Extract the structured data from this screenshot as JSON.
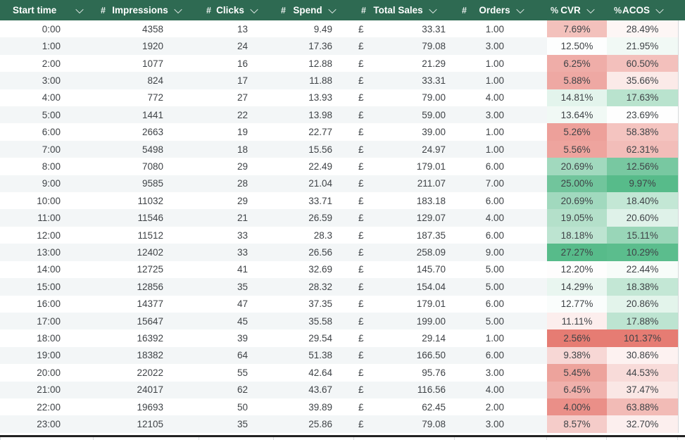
{
  "table": {
    "currency_symbol": "£",
    "columns": [
      {
        "key": "start_time",
        "label": "Start time",
        "format": ""
      },
      {
        "key": "impressions",
        "label": "Impressions",
        "format": "#"
      },
      {
        "key": "clicks",
        "label": "Clicks",
        "format": "#"
      },
      {
        "key": "spend",
        "label": "Spend",
        "format": "#"
      },
      {
        "key": "total_sales",
        "label": "Total Sales",
        "format": "#"
      },
      {
        "key": "orders",
        "label": "Orders",
        "format": "#"
      },
      {
        "key": "cvr",
        "label": "CVR",
        "format": "%"
      },
      {
        "key": "acos",
        "label": "ACOS",
        "format": "%"
      }
    ],
    "rows": [
      {
        "start_time": "0:00",
        "impressions": "4358",
        "clicks": "13",
        "spend": "9.49",
        "total_sales": "33.31",
        "orders": "1.00",
        "cvr": "7.69%",
        "acos": "28.49%",
        "cvr_bg": "#f3c1bc",
        "acos_bg": "#fdf6f5"
      },
      {
        "start_time": "1:00",
        "impressions": "1920",
        "clicks": "24",
        "spend": "17.36",
        "total_sales": "79.08",
        "orders": "3.00",
        "cvr": "12.50%",
        "acos": "21.95%",
        "cvr_bg": "#fdfefe",
        "acos_bg": "#f1f9f5"
      },
      {
        "start_time": "2:00",
        "impressions": "1077",
        "clicks": "16",
        "spend": "12.88",
        "total_sales": "21.29",
        "orders": "1.00",
        "cvr": "6.25%",
        "acos": "60.50%",
        "cvr_bg": "#efada8",
        "acos_bg": "#f3c0bc"
      },
      {
        "start_time": "3:00",
        "impressions": "824",
        "clicks": "17",
        "spend": "11.88",
        "total_sales": "33.31",
        "orders": "1.00",
        "cvr": "5.88%",
        "acos": "35.66%",
        "cvr_bg": "#eea8a3",
        "acos_bg": "#fbeae8"
      },
      {
        "start_time": "4:00",
        "impressions": "772",
        "clicks": "27",
        "spend": "13.93",
        "total_sales": "79.00",
        "orders": "4.00",
        "cvr": "14.81%",
        "acos": "17.63%",
        "cvr_bg": "#e3f4ec",
        "acos_bg": "#b9e3ce"
      },
      {
        "start_time": "5:00",
        "impressions": "1441",
        "clicks": "22",
        "spend": "13.98",
        "total_sales": "59.00",
        "orders": "3.00",
        "cvr": "13.64%",
        "acos": "23.69%",
        "cvr_bg": "#f1f9f5",
        "acos_bg": "#fefefe"
      },
      {
        "start_time": "6:00",
        "impressions": "2663",
        "clicks": "19",
        "spend": "22.77",
        "total_sales": "39.00",
        "orders": "1.00",
        "cvr": "5.26%",
        "acos": "58.38%",
        "cvr_bg": "#eda09a",
        "acos_bg": "#f4c4c0"
      },
      {
        "start_time": "7:00",
        "impressions": "5498",
        "clicks": "18",
        "spend": "15.56",
        "total_sales": "24.97",
        "orders": "1.00",
        "cvr": "5.56%",
        "acos": "62.31%",
        "cvr_bg": "#eea49e",
        "acos_bg": "#f2bdb9"
      },
      {
        "start_time": "8:00",
        "impressions": "7080",
        "clicks": "29",
        "spend": "22.49",
        "total_sales": "179.01",
        "orders": "6.00",
        "cvr": "20.69%",
        "acos": "12.56%",
        "cvr_bg": "#a1d9be",
        "acos_bg": "#78c8a1"
      },
      {
        "start_time": "9:00",
        "impressions": "9585",
        "clicks": "28",
        "spend": "21.04",
        "total_sales": "211.07",
        "orders": "7.00",
        "cvr": "25.00%",
        "acos": "9.97%",
        "cvr_bg": "#71c59c",
        "acos_bg": "#57bb8a"
      },
      {
        "start_time": "10:00",
        "impressions": "11032",
        "clicks": "29",
        "spend": "33.71",
        "total_sales": "183.18",
        "orders": "6.00",
        "cvr": "20.69%",
        "acos": "18.40%",
        "cvr_bg": "#a1d9be",
        "acos_bg": "#c3e7d5"
      },
      {
        "start_time": "11:00",
        "impressions": "11546",
        "clicks": "21",
        "spend": "26.59",
        "total_sales": "129.07",
        "orders": "4.00",
        "cvr": "19.05%",
        "acos": "20.60%",
        "cvr_bg": "#b4e0ca",
        "acos_bg": "#dff2e9"
      },
      {
        "start_time": "12:00",
        "impressions": "11512",
        "clicks": "33",
        "spend": "28.3",
        "total_sales": "187.35",
        "orders": "6.00",
        "cvr": "18.18%",
        "acos": "15.11%",
        "cvr_bg": "#bde4d1",
        "acos_bg": "#99d6b8"
      },
      {
        "start_time": "13:00",
        "impressions": "12402",
        "clicks": "33",
        "spend": "26.56",
        "total_sales": "258.09",
        "orders": "9.00",
        "cvr": "27.27%",
        "acos": "10.29%",
        "cvr_bg": "#57bb8a",
        "acos_bg": "#5bbd8d"
      },
      {
        "start_time": "14:00",
        "impressions": "12725",
        "clicks": "41",
        "spend": "32.69",
        "total_sales": "145.70",
        "orders": "5.00",
        "cvr": "12.20%",
        "acos": "22.44%",
        "cvr_bg": "#fefdfd",
        "acos_bg": "#f7fcf9"
      },
      {
        "start_time": "15:00",
        "impressions": "12856",
        "clicks": "35",
        "spend": "28.32",
        "total_sales": "154.04",
        "orders": "5.00",
        "cvr": "14.29%",
        "acos": "18.38%",
        "cvr_bg": "#e9f6f0",
        "acos_bg": "#c3e7d5"
      },
      {
        "start_time": "16:00",
        "impressions": "14377",
        "clicks": "47",
        "spend": "37.35",
        "total_sales": "179.01",
        "orders": "6.00",
        "cvr": "12.77%",
        "acos": "20.86%",
        "cvr_bg": "#fafdfc",
        "acos_bg": "#e3f4eb"
      },
      {
        "start_time": "17:00",
        "impressions": "15647",
        "clicks": "45",
        "spend": "35.58",
        "total_sales": "199.00",
        "orders": "5.00",
        "cvr": "11.11%",
        "acos": "17.88%",
        "cvr_bg": "#fceeed",
        "acos_bg": "#bde4d1"
      },
      {
        "start_time": "18:00",
        "impressions": "16392",
        "clicks": "39",
        "spend": "29.54",
        "total_sales": "29.14",
        "orders": "1.00",
        "cvr": "2.56%",
        "acos": "101.37%",
        "cvr_bg": "#e67c73",
        "acos_bg": "#e67c73"
      },
      {
        "start_time": "19:00",
        "impressions": "18382",
        "clicks": "64",
        "spend": "51.38",
        "total_sales": "166.50",
        "orders": "6.00",
        "cvr": "9.38%",
        "acos": "30.86%",
        "cvr_bg": "#f7d7d5",
        "acos_bg": "#fdf2f1"
      },
      {
        "start_time": "20:00",
        "impressions": "22022",
        "clicks": "55",
        "spend": "42.64",
        "total_sales": "95.76",
        "orders": "3.00",
        "cvr": "5.45%",
        "acos": "44.53%",
        "cvr_bg": "#eda39c",
        "acos_bg": "#f8dbd9"
      },
      {
        "start_time": "21:00",
        "impressions": "24017",
        "clicks": "62",
        "spend": "43.67",
        "total_sales": "116.56",
        "orders": "4.00",
        "cvr": "6.45%",
        "acos": "37.47%",
        "cvr_bg": "#f0b0ab",
        "acos_bg": "#fae7e5"
      },
      {
        "start_time": "22:00",
        "impressions": "19693",
        "clicks": "50",
        "spend": "39.89",
        "total_sales": "62.45",
        "orders": "2.00",
        "cvr": "4.00%",
        "acos": "63.88%",
        "cvr_bg": "#ea8f88",
        "acos_bg": "#f2bbb6"
      },
      {
        "start_time": "23:00",
        "impressions": "12105",
        "clicks": "35",
        "spend": "25.86",
        "total_sales": "79.08",
        "orders": "3.00",
        "cvr": "8.57%",
        "acos": "32.70%",
        "cvr_bg": "#f5ccc9",
        "acos_bg": "#fcefee"
      }
    ]
  },
  "colors": {
    "header_bg": "#2e6a52",
    "header_text": "#ffffff",
    "row_stripe": "#f3f6f7",
    "row_white": "#ffffff",
    "cell_text": "#3f4347",
    "scale_red": "#e67c73",
    "scale_mid": "#ffffff",
    "scale_green": "#57bb8a",
    "bottom_bar": "#212121",
    "gridline": "#d5d8da"
  }
}
